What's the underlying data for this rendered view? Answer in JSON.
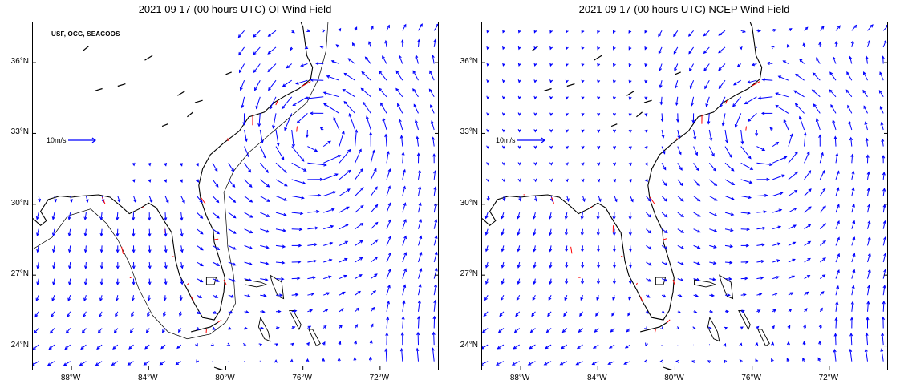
{
  "panels": [
    {
      "title": "2021 09 17 (00 hours UTC) OI Wind Field",
      "credit": "USF, OCG, SEACOOS",
      "scale_label": "10m/s",
      "has_data_gap": true
    },
    {
      "title": "2021 09 17 (00 hours UTC) NCEP Wind Field",
      "credit": "",
      "scale_label": "10m/s",
      "has_data_gap": false
    }
  ],
  "axes": {
    "lat_labels": [
      "36°N",
      "33°N",
      "30°N",
      "27°N",
      "24°N"
    ],
    "lon_labels": [
      "88°W",
      "84°W",
      "80°W",
      "76°W",
      "72°W"
    ],
    "lat_values": [
      36,
      33,
      30,
      27,
      24
    ],
    "lon_values": [
      -88,
      -84,
      -80,
      -76,
      -72
    ],
    "lon_range": [
      -90.0,
      -69.0
    ],
    "lat_range": [
      23.0,
      37.7
    ]
  },
  "wind_model": {
    "units": "m/s",
    "storm_center": {
      "lon": -75.2,
      "lat": 33.0
    },
    "vector_color": "#0000ff",
    "station_vector_color": "#ff0000",
    "coastline_color": "#000000"
  }
}
